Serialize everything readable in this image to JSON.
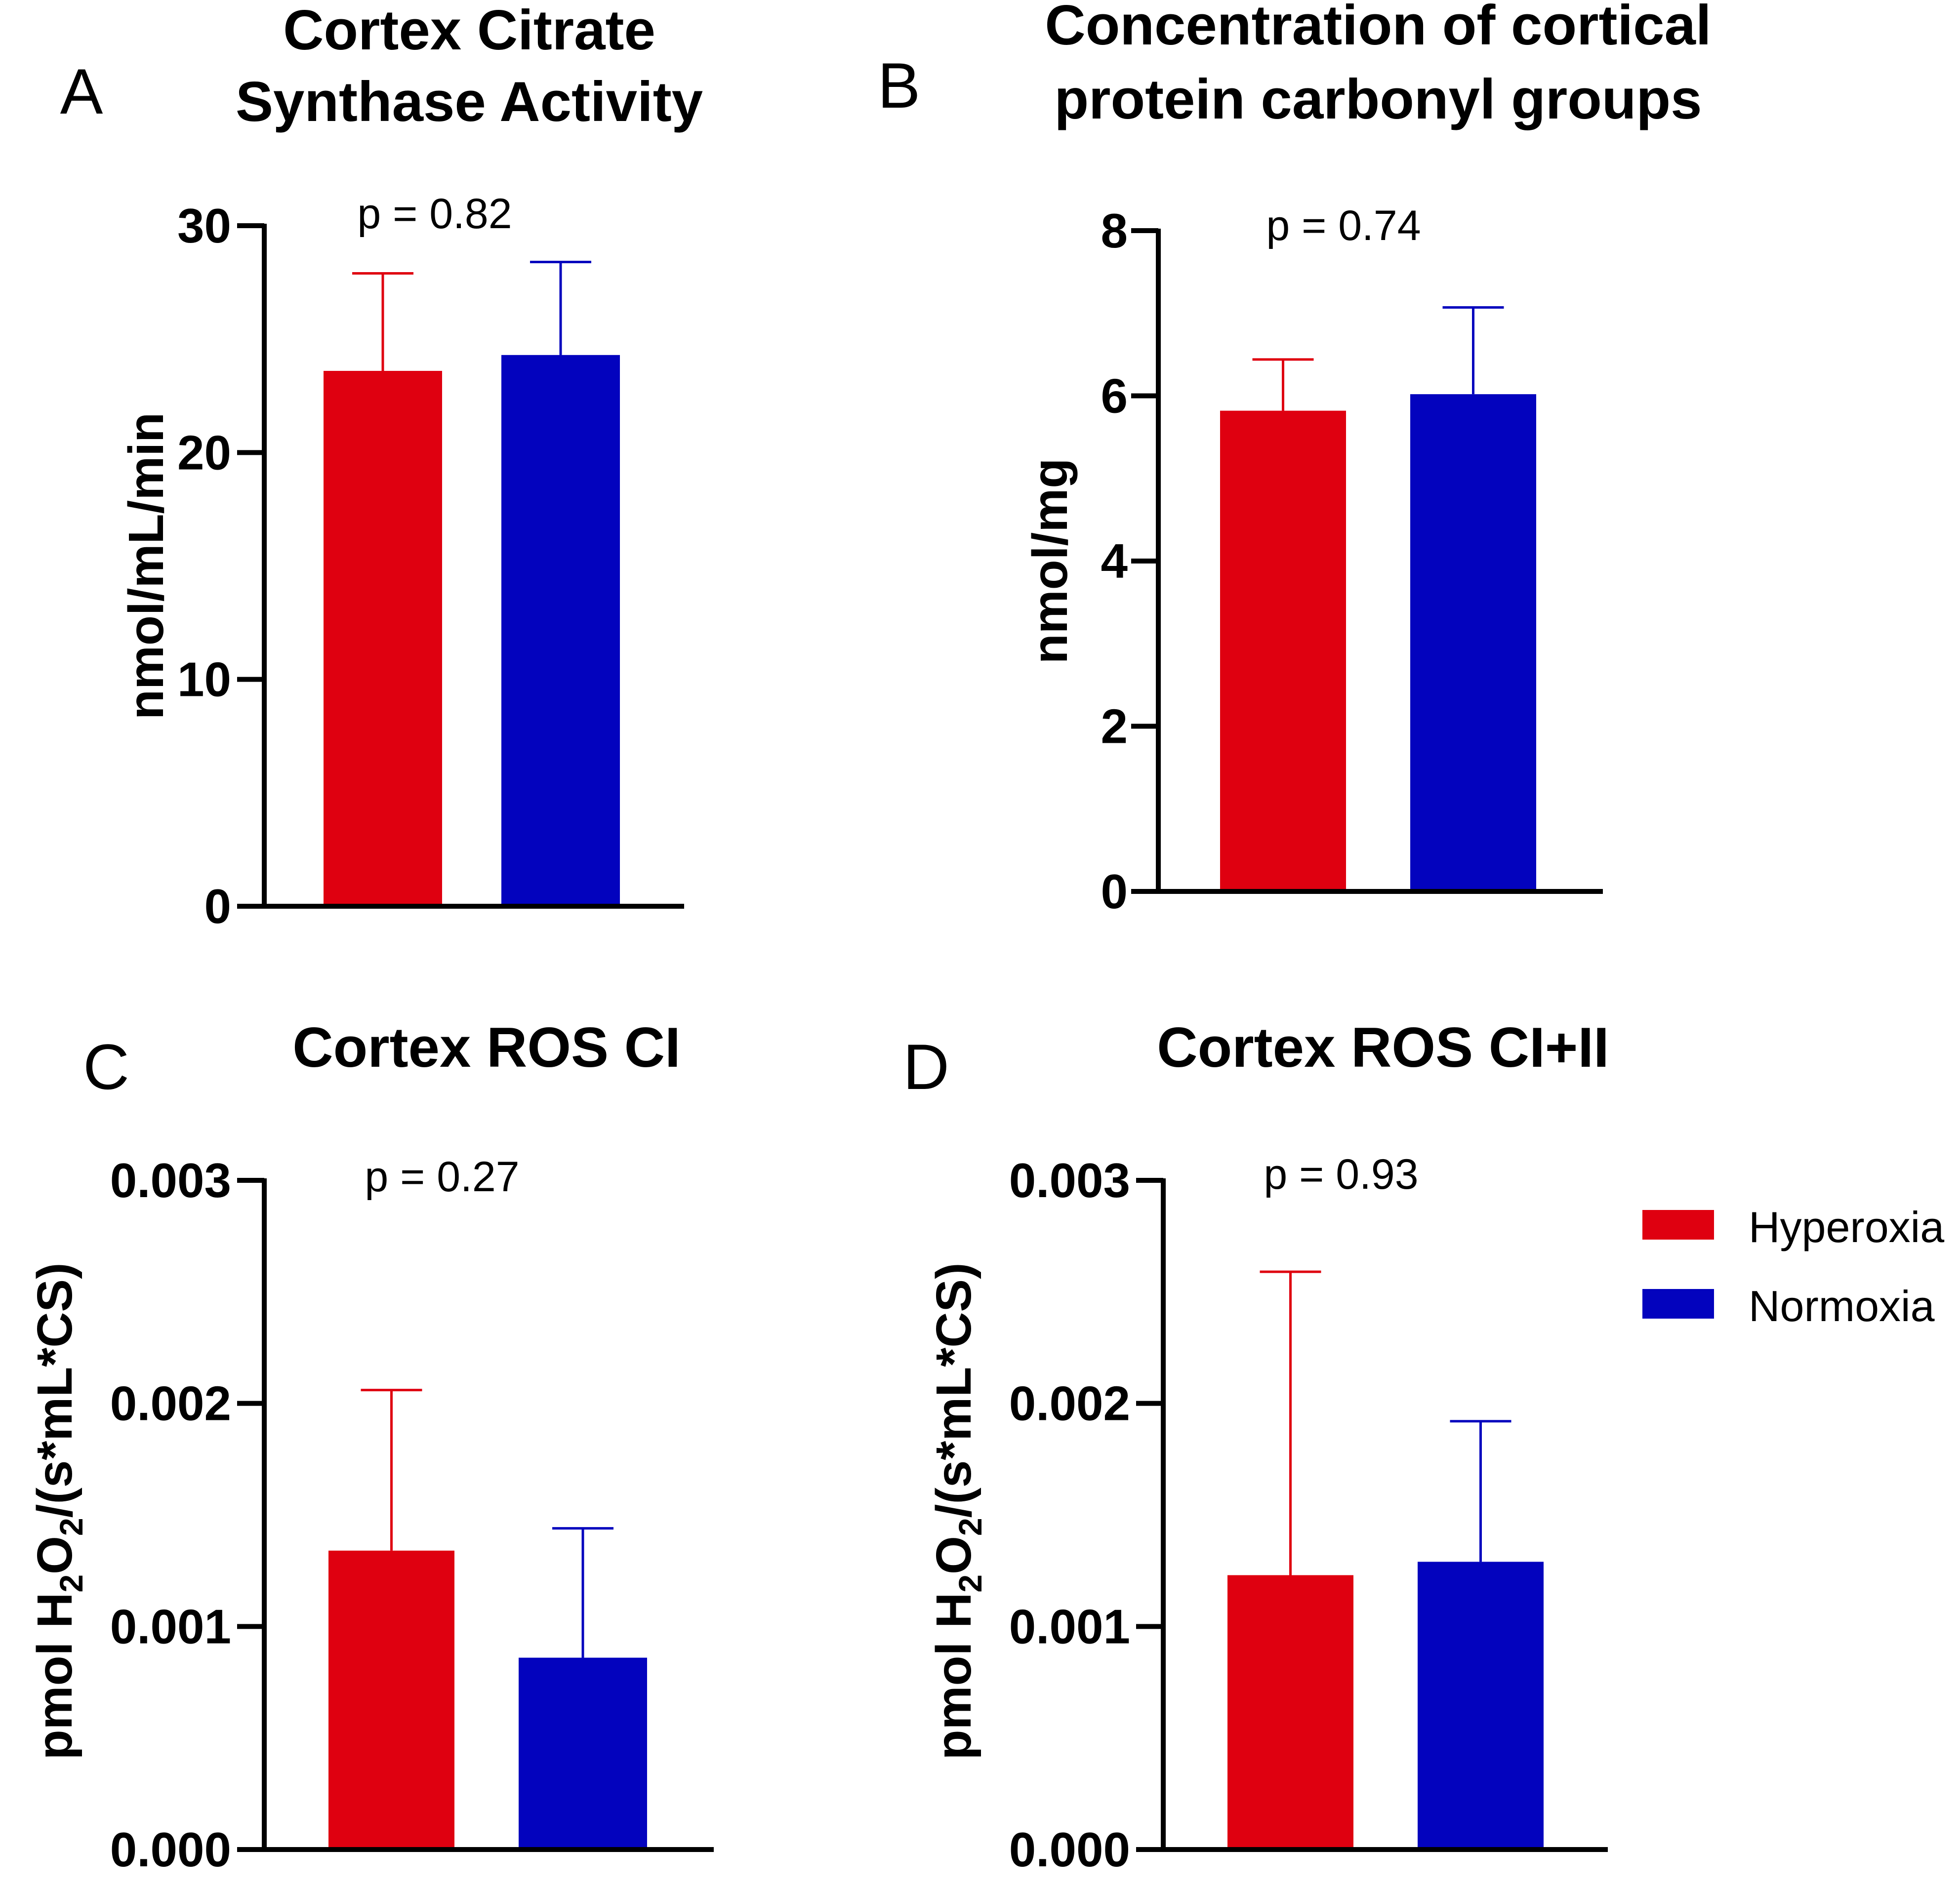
{
  "colors": {
    "hyperoxia": "#df0010",
    "normoxia": "#0303be",
    "axis": "#000000"
  },
  "legend": {
    "items": [
      {
        "label": "Hyperoxia",
        "color": "#df0010"
      },
      {
        "label": "Normoxia",
        "color": "#0303be"
      }
    ]
  },
  "chart_data": [
    {
      "type": "bar",
      "panel": "A",
      "title": [
        "Cortex Citrate",
        "Synthase Activity"
      ],
      "ylabel": "nmol/mL/min",
      "ylim": [
        0,
        30
      ],
      "yticks": [
        "0",
        "10",
        "20",
        "30"
      ],
      "p_value": "p = 0.82",
      "categories": [
        "Hyperoxia",
        "Normoxia"
      ],
      "values": [
        23.6,
        24.3
      ],
      "errors": [
        4.3,
        4.1
      ]
    },
    {
      "type": "bar",
      "panel": "B",
      "title": [
        "Concentration of cortical",
        "protein carbonyl groups"
      ],
      "ylabel": "nmol/mg",
      "ylim": [
        0,
        8
      ],
      "yticks": [
        "0",
        "2",
        "4",
        "6",
        "8"
      ],
      "p_value": "p = 0.74",
      "categories": [
        "Hyperoxia",
        "Normoxia"
      ],
      "values": [
        5.82,
        6.02
      ],
      "errors": [
        0.62,
        1.05
      ]
    },
    {
      "type": "bar",
      "panel": "C",
      "title": [
        "Cortex ROS CI"
      ],
      "ylabel": "pmol H2O2/(s*mL*CS)",
      "ylim": [
        0,
        0.003
      ],
      "yticks": [
        "0.000",
        "0.001",
        "0.002",
        "0.003"
      ],
      "p_value": "p = 0.27",
      "categories": [
        "Hyperoxia",
        "Normoxia"
      ],
      "values": [
        0.00134,
        0.00086
      ],
      "errors": [
        0.00072,
        0.00058
      ]
    },
    {
      "type": "bar",
      "panel": "D",
      "title": [
        "Cortex ROS CI+II"
      ],
      "ylabel": "pmol H2O2/(s*mL*CS)",
      "ylim": [
        0,
        0.003
      ],
      "yticks": [
        "0.000",
        "0.001",
        "0.002",
        "0.003"
      ],
      "p_value": "p = 0.93",
      "categories": [
        "Hyperoxia",
        "Normoxia"
      ],
      "values": [
        0.00123,
        0.00129
      ],
      "errors": [
        0.00136,
        0.00063
      ]
    }
  ]
}
